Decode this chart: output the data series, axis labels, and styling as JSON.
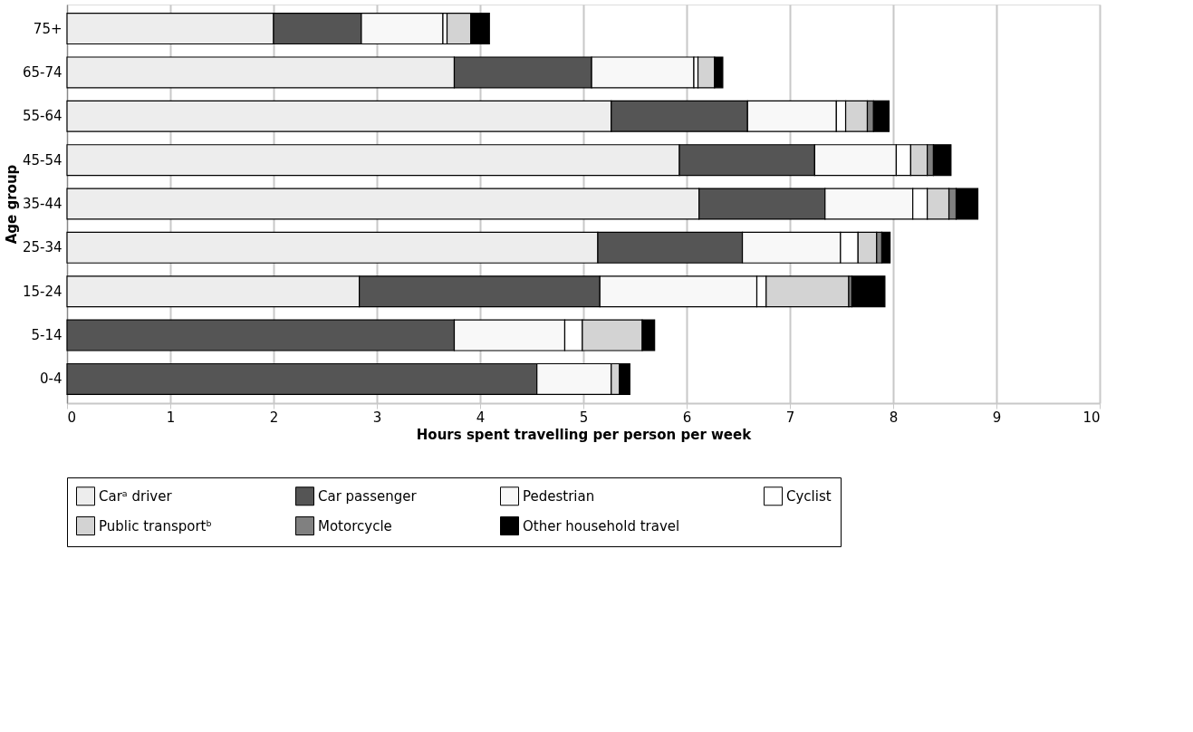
{
  "chart_data": {
    "type": "bar",
    "orientation": "horizontal",
    "stacked": true,
    "xlabel": "Hours spent travelling per person per week",
    "ylabel": "Age group",
    "categories": [
      "75+",
      "65-74",
      "55-64",
      "45-54",
      "35-44",
      "25-34",
      "15-24",
      "5-14",
      "0-4"
    ],
    "series": [
      {
        "name": "Carᵃ driver",
        "color": "#ededed",
        "values": [
          2.0,
          3.75,
          5.27,
          5.93,
          6.12,
          5.14,
          2.83,
          0,
          0
        ]
      },
      {
        "name": "Car passenger",
        "color": "#555555",
        "values": [
          0.85,
          1.33,
          1.32,
          1.31,
          1.22,
          1.4,
          2.33,
          3.75,
          4.55
        ]
      },
      {
        "name": "Pedestrian",
        "color": "#f8f8f8",
        "values": [
          0.79,
          0.99,
          0.86,
          0.79,
          0.85,
          0.95,
          1.52,
          1.07,
          0.72
        ]
      },
      {
        "name": "Cyclist",
        "color": "#ffffff",
        "values": [
          0.04,
          0.04,
          0.09,
          0.14,
          0.14,
          0.17,
          0.09,
          0.17,
          0
        ]
      },
      {
        "name": "Public transportᵇ",
        "color": "#d3d3d3",
        "values": [
          0.23,
          0.16,
          0.21,
          0.16,
          0.21,
          0.18,
          0.8,
          0.58,
          0.08
        ]
      },
      {
        "name": "Motorcycle",
        "color": "#808080",
        "values": [
          0,
          0,
          0.06,
          0.06,
          0.07,
          0.05,
          0.03,
          0,
          0
        ]
      },
      {
        "name": "Other household travel",
        "color": "#000000",
        "values": [
          0.18,
          0.08,
          0.15,
          0.17,
          0.21,
          0.08,
          0.32,
          0.12,
          0.1
        ]
      }
    ],
    "xlim": [
      0,
      10
    ],
    "xticks": [
      0,
      1,
      2,
      3,
      4,
      5,
      6,
      7,
      8,
      9,
      10
    ],
    "grid": "x",
    "legend": "bottom"
  }
}
